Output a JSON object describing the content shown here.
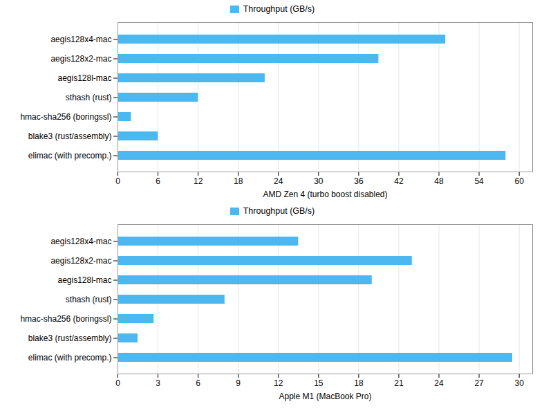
{
  "chart_data": [
    {
      "type": "bar",
      "orientation": "horizontal",
      "xlabel": "AMD Zen 4 (turbo boost disabled)",
      "categories": [
        "aegis128x4-mac",
        "aegis128x2-mac",
        "aegis128l-mac",
        "sthash (rust)",
        "hmac-sha256 (boringssl)",
        "blake3 (rust/assembly)",
        "elimac (with precomp.)"
      ],
      "series": [
        {
          "name": "Throughput (GB/s)",
          "color": "#4db8f0",
          "values": [
            49.0,
            39.0,
            22.0,
            12.0,
            2.0,
            6.0,
            58.0
          ]
        }
      ],
      "xlim": [
        0,
        62
      ],
      "xticks": [
        0,
        6,
        12,
        18,
        24,
        30,
        36,
        42,
        48,
        54,
        60
      ],
      "grid": true,
      "legend": "top"
    },
    {
      "type": "bar",
      "orientation": "horizontal",
      "xlabel": "Apple M1 (MacBook Pro)",
      "categories": [
        "aegis128x4-mac",
        "aegis128x2-mac",
        "aegis128l-mac",
        "sthash (rust)",
        "hmac-sha256 (boringssl)",
        "blake3 (rust/assembly)",
        "elimac (with precomp.)"
      ],
      "series": [
        {
          "name": "Throughput (GB/s)",
          "color": "#4db8f0",
          "values": [
            13.5,
            22.0,
            19.0,
            8.0,
            2.7,
            1.5,
            29.5
          ]
        }
      ],
      "xlim": [
        0,
        31
      ],
      "xticks": [
        0,
        3,
        6,
        9,
        12,
        15,
        18,
        21,
        24,
        27,
        30
      ],
      "grid": true,
      "legend": "top"
    }
  ]
}
